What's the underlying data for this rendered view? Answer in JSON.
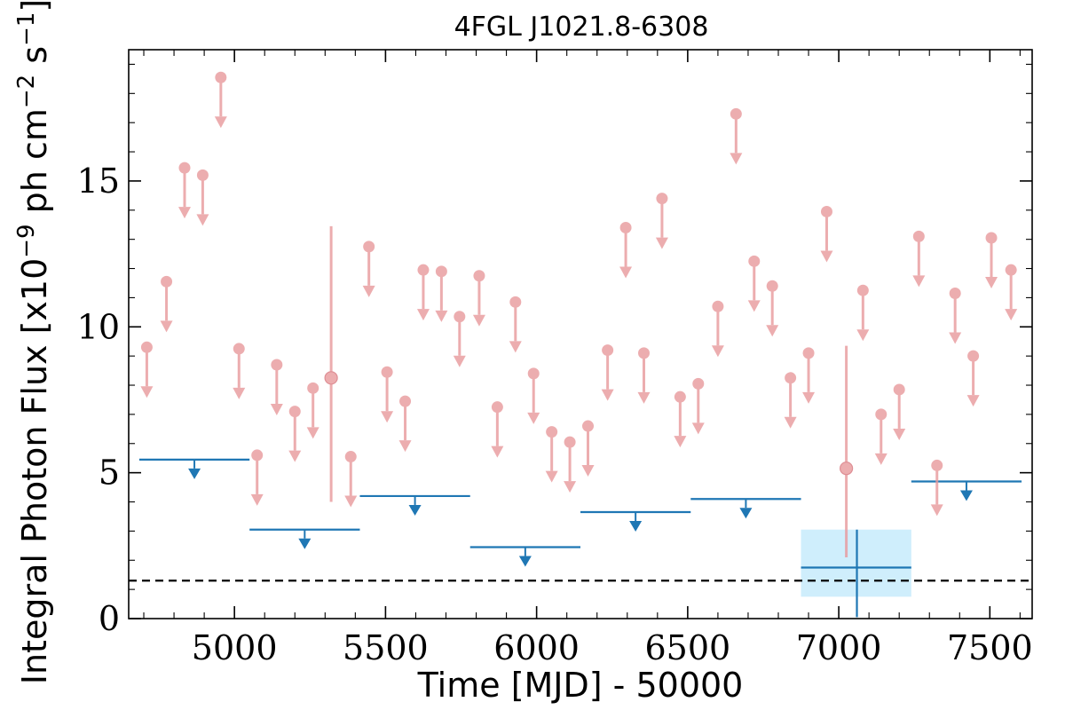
{
  "chart_data": {
    "type": "scatter",
    "title": "4FGL J1021.8-6308",
    "xlabel": "Time [MJD] - 50000",
    "ylabel": "Integral Photon Flux [x10",
    "ylabel_exp1": "−9",
    "ylabel_mid": " ph cm",
    "ylabel_exp2": "−2",
    "ylabel_mid2": " s",
    "ylabel_exp3": "−1",
    "ylabel_end": "]",
    "xlim": [
      4650,
      7640
    ],
    "ylim": [
      0,
      19.5
    ],
    "xticks": [
      5000,
      5500,
      6000,
      6500,
      7000,
      7500
    ],
    "xtick_labels": [
      "5000",
      "5500",
      "6000",
      "6500",
      "7000",
      "7500"
    ],
    "yticks": [
      0,
      5,
      10,
      15
    ],
    "ytick_labels": [
      "0",
      "5",
      "10",
      "15"
    ],
    "colors": {
      "monthly": "#e8999c",
      "yearly": "#1f77b4",
      "band": "#cfeefc",
      "reference": "#000000"
    },
    "reference_line": 1.3,
    "series": [
      {
        "kind": "upper_limits",
        "x": [
          4710,
          4775,
          4835,
          4895,
          4955,
          5015,
          5075,
          5140,
          5200,
          5260,
          5385,
          5445,
          5505,
          5565,
          5625,
          5685,
          5745,
          5810,
          5870,
          5930,
          5990,
          6050,
          6110,
          6170,
          6235,
          6295,
          6355,
          6415,
          6475,
          6535,
          6600,
          6660,
          6720,
          6780,
          6840,
          6900,
          6960,
          7080,
          7140,
          7200,
          7265,
          7325,
          7385,
          7445,
          7505,
          7570
        ],
        "y": [
          9.3,
          11.55,
          15.45,
          15.2,
          18.55,
          9.25,
          5.6,
          8.7,
          7.1,
          7.9,
          5.55,
          12.75,
          8.45,
          7.45,
          11.95,
          11.9,
          10.35,
          11.75,
          7.25,
          10.85,
          8.4,
          6.4,
          6.05,
          6.6,
          9.2,
          13.4,
          9.1,
          14.4,
          7.6,
          8.05,
          10.7,
          17.3,
          12.25,
          11.4,
          8.25,
          9.1,
          13.95,
          11.25,
          7.0,
          7.85,
          13.1,
          5.25,
          11.15,
          9.0,
          13.05,
          11.95
        ]
      },
      {
        "kind": "detections",
        "x": [
          5320,
          7025
        ],
        "y": [
          8.25,
          5.15
        ],
        "y_low": [
          4.0,
          2.1
        ],
        "y_high": [
          13.45,
          9.35
        ]
      },
      {
        "kind": "yearly_upper_limits",
        "x_start": [
          4685,
          5050,
          5415,
          5780,
          6145,
          6510,
          7240
        ],
        "x_end": [
          5050,
          5415,
          5780,
          6145,
          6510,
          6875,
          7605
        ],
        "y": [
          5.45,
          3.05,
          4.2,
          2.45,
          3.65,
          4.1,
          4.7
        ]
      },
      {
        "kind": "yearly_detection",
        "x": 7060,
        "x_start": 6875,
        "x_end": 7240,
        "y": 1.75,
        "y_low": 0.75,
        "y_high": 3.05
      }
    ]
  }
}
